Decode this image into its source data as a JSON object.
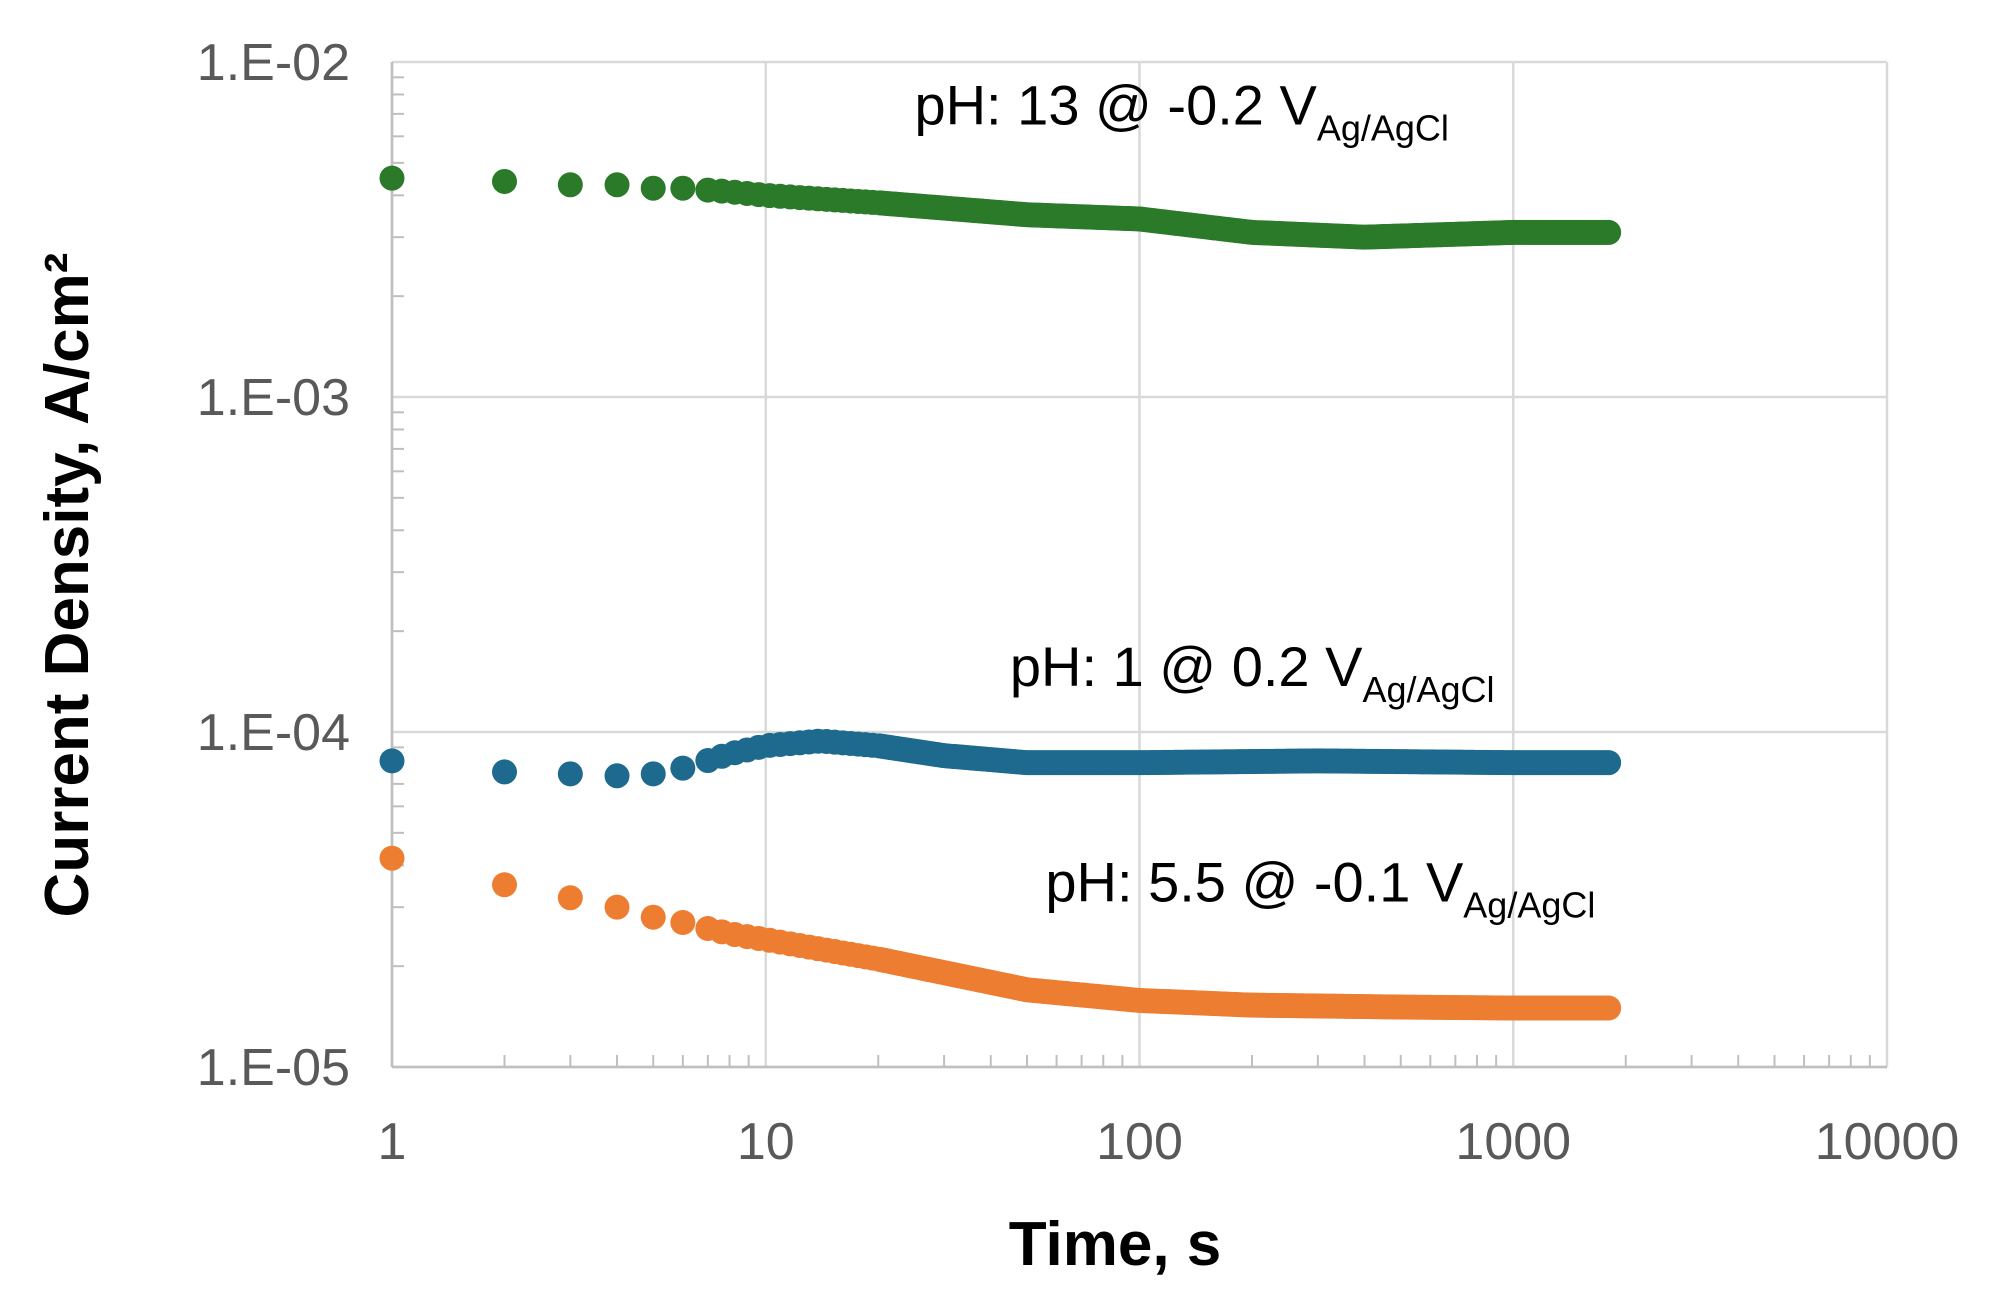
{
  "chart_data": {
    "type": "scatter",
    "title": "",
    "xlabel": "Time, s",
    "ylabel": "Current Density, A/cm²",
    "x_scale": "log",
    "y_scale": "log",
    "xlim": [
      1,
      10000
    ],
    "ylim": [
      1e-05,
      0.01
    ],
    "grid": true,
    "x_ticks": [
      1,
      10,
      100,
      1000,
      10000
    ],
    "x_tick_labels": [
      "1",
      "10",
      "100",
      "1000",
      "10000"
    ],
    "y_ticks": [
      1e-05,
      0.0001,
      0.001,
      0.01
    ],
    "y_tick_labels": [
      "1.E-05",
      "1.E-04",
      "1.E-03",
      "1.E-02"
    ],
    "series": [
      {
        "name": "pH: 13 @ -0.2 V Ag/AgCl",
        "color": "#2a7a2a",
        "anchors_x": [
          1,
          2,
          3,
          4,
          5,
          6,
          8,
          10,
          20,
          50,
          100,
          200,
          400,
          1000,
          1800
        ],
        "anchors_y": [
          0.0045,
          0.0044,
          0.0043,
          0.0043,
          0.0042,
          0.0042,
          0.0041,
          0.004,
          0.0038,
          0.0035,
          0.0034,
          0.0031,
          0.003,
          0.0031,
          0.0031
        ]
      },
      {
        "name": "pH: 1 @ 0.2 V Ag/AgCl",
        "color": "#1d6a8e",
        "anchors_x": [
          1,
          2,
          3,
          4,
          5,
          6,
          8,
          10,
          14,
          20,
          30,
          50,
          100,
          300,
          1000,
          1800
        ],
        "anchors_y": [
          8.2e-05,
          7.6e-05,
          7.5e-05,
          7.4e-05,
          7.5e-05,
          7.8e-05,
          8.6e-05,
          9.1e-05,
          9.4e-05,
          9.1e-05,
          8.5e-05,
          8.1e-05,
          8.1e-05,
          8.2e-05,
          8.1e-05,
          8.1e-05
        ]
      },
      {
        "name": "pH: 5.5 @ -0.1 V Ag/AgCl",
        "color": "#ed7d31",
        "anchors_x": [
          1,
          2,
          3,
          4,
          5,
          6,
          8,
          10,
          20,
          50,
          100,
          200,
          500,
          1000,
          1800
        ],
        "anchors_y": [
          4.2e-05,
          3.5e-05,
          3.2e-05,
          3e-05,
          2.8e-05,
          2.7e-05,
          2.5e-05,
          2.4e-05,
          2.1e-05,
          1.7e-05,
          1.58e-05,
          1.53e-05,
          1.51e-05,
          1.5e-05,
          1.5e-05
        ]
      }
    ],
    "annotations": [
      {
        "series_index": 0,
        "text": "pH: 13 @ -0.2 V",
        "subscript": "Ag/AgCl",
        "x": 25,
        "y": 0.0065
      },
      {
        "series_index": 1,
        "text": "pH: 1 @ 0.2 V",
        "subscript": "Ag/AgCl",
        "x": 45,
        "y": 0.000137
      },
      {
        "series_index": 2,
        "text": "pH: 5.5 @ -0.1 V",
        "subscript": "Ag/AgCl",
        "x": 56,
        "y": 3.12e-05
      }
    ]
  }
}
